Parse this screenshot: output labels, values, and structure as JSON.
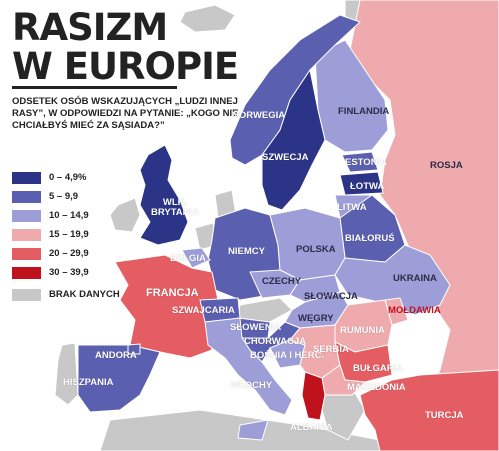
{
  "title": {
    "line1": "RASIZM",
    "line2": "W EUROPIE"
  },
  "subtitle": "ODSETEK OSÓB WSKAZUJĄCYCH „LUDZI INNEJ RASY”, W ODPOWIEDZI NA PYTANIE: „KOGO NIE CHCIAŁBYŚ MIEĆ ZA SĄSIADA?”",
  "legend": {
    "items": [
      {
        "label": "0 – 4,9%",
        "color": "#2b3486"
      },
      {
        "label": "5 – 9,9",
        "color": "#5a5fb0"
      },
      {
        "label": "10 – 14,9",
        "color": "#9d9ed8"
      },
      {
        "label": "15 – 19,9",
        "color": "#efaaae"
      },
      {
        "label": "20 – 29,9",
        "color": "#e45d63"
      },
      {
        "label": "30 – 39,9",
        "color": "#c0121c"
      }
    ],
    "nodata": {
      "label": "BRAK DANYCH",
      "color": "#c8c8c8"
    }
  },
  "countries": [
    {
      "id": "norwegia",
      "name": "NORWEGIA",
      "category": "5 – 9,9"
    },
    {
      "id": "szwecja",
      "name": "SZWECJA",
      "category": "0 – 4,9%"
    },
    {
      "id": "finlandia",
      "name": "FINLANDIA",
      "category": "10 – 14,9"
    },
    {
      "id": "estonia",
      "name": "ESTONIA",
      "category": "5 – 9,9"
    },
    {
      "id": "lotwa",
      "name": "ŁOTWA",
      "category": "0 – 4,9%"
    },
    {
      "id": "litwa",
      "name": "LITWA",
      "category": "10 – 14,9"
    },
    {
      "id": "rosja",
      "name": "ROSJA",
      "category": "15 – 19,9"
    },
    {
      "id": "wlk-brytania",
      "name": "WLK. BRYTANIA",
      "category": "0 – 4,9%"
    },
    {
      "id": "niemcy",
      "name": "NIEMCY",
      "category": "5 – 9,9"
    },
    {
      "id": "polska",
      "name": "POLSKA",
      "category": "10 – 14,9"
    },
    {
      "id": "bialorus",
      "name": "BIAŁORUŚ",
      "category": "5 – 9,9"
    },
    {
      "id": "ukraina",
      "name": "UKRAINA",
      "category": "10 – 14,9"
    },
    {
      "id": "belgia",
      "name": "BELGIA",
      "category": "10 – 14,9"
    },
    {
      "id": "czechy",
      "name": "CZECHY",
      "category": "10 – 14,9"
    },
    {
      "id": "slowacja",
      "name": "SŁOWACJA",
      "category": "10 – 14,9"
    },
    {
      "id": "francja",
      "name": "FRANCJA",
      "category": "20 – 29,9"
    },
    {
      "id": "szwajcaria",
      "name": "SZWAJCARIA",
      "category": "5 – 9,9"
    },
    {
      "id": "slowenia",
      "name": "SŁOWENIA",
      "category": "5 – 9,9"
    },
    {
      "id": "wegry",
      "name": "WĘGRY",
      "category": "10 – 14,9"
    },
    {
      "id": "moldawia",
      "name": "MOŁDAWIA",
      "category": "15 – 19,9"
    },
    {
      "id": "rumunia",
      "name": "RUMUNIA",
      "category": "15 – 19,9"
    },
    {
      "id": "chorwacja",
      "name": "CHORWACJA",
      "category": "5 – 9,9"
    },
    {
      "id": "bosnia",
      "name": "BOŚNIA I HERC.",
      "category": "10 – 14,9"
    },
    {
      "id": "serbia",
      "name": "SERBIA",
      "category": "15 – 19,9"
    },
    {
      "id": "bulgaria",
      "name": "BUŁGARIA",
      "category": "20 – 29,9"
    },
    {
      "id": "andora",
      "name": "ANDORA",
      "category": "5 – 9,9"
    },
    {
      "id": "hiszpania",
      "name": "HISZPANIA",
      "category": "5 – 9,9"
    },
    {
      "id": "wlochy",
      "name": "WŁOCHY",
      "category": "10 – 14,9"
    },
    {
      "id": "albania",
      "name": "ALBANIA",
      "category": "30 – 39,9"
    },
    {
      "id": "macedonia",
      "name": "MACEDONIA",
      "category": "15 – 19,9"
    },
    {
      "id": "turcja",
      "name": "TURCJA",
      "category": "20 – 29,9"
    }
  ]
}
